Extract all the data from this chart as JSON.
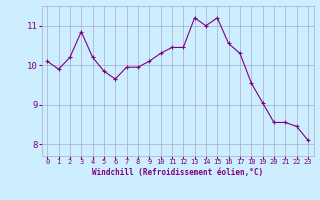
{
  "x": [
    0,
    1,
    2,
    3,
    4,
    5,
    6,
    7,
    8,
    9,
    10,
    11,
    12,
    13,
    14,
    15,
    16,
    17,
    18,
    19,
    20,
    21,
    22,
    23
  ],
  "y": [
    10.1,
    9.9,
    10.2,
    10.85,
    10.2,
    9.85,
    9.65,
    9.95,
    9.95,
    10.1,
    10.3,
    10.45,
    10.45,
    11.2,
    11.0,
    11.2,
    10.55,
    10.3,
    9.55,
    9.05,
    8.55,
    8.55,
    8.45,
    8.1
  ],
  "line_color": "#800080",
  "marker": "+",
  "marker_color": "#800080",
  "bg_color": "#cceeff",
  "grid_color": "#aaaacc",
  "xlabel": "Windchill (Refroidissement éolien,°C)",
  "xlabel_color": "#800080",
  "tick_color": "#800080",
  "yticks": [
    8,
    9,
    10,
    11
  ],
  "ylim": [
    7.7,
    11.5
  ],
  "xlim": [
    -0.5,
    23.5
  ],
  "xtick_labels": [
    "0",
    "1",
    "2",
    "3",
    "4",
    "5",
    "6",
    "7",
    "8",
    "9",
    "10",
    "11",
    "12",
    "13",
    "14",
    "15",
    "16",
    "17",
    "18",
    "19",
    "20",
    "21",
    "22",
    "23"
  ]
}
